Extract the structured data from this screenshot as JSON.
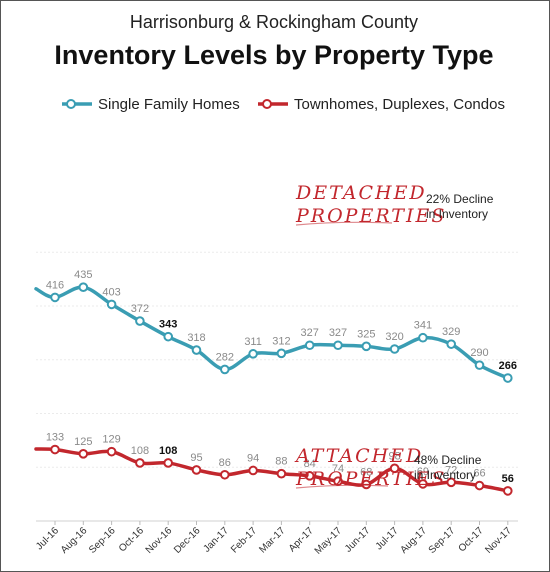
{
  "subtitle": "Harrisonburg & Rockingham County",
  "title": "Inventory Levels by Property Type",
  "chart_data": {
    "type": "line",
    "categories": [
      "Jul-16",
      "Aug-16",
      "Sep-16",
      "Oct-16",
      "Nov-16",
      "Dec-16",
      "Jan-17",
      "Feb-17",
      "Mar-17",
      "Apr-17",
      "May-17",
      "Jun-17",
      "Jul-17",
      "Aug-17",
      "Sep-17",
      "Oct-17",
      "Nov-17"
    ],
    "series": [
      {
        "name": "Single Family Homes",
        "color": "#3a9db3",
        "values": [
          416,
          435,
          403,
          372,
          343,
          318,
          282,
          311,
          312,
          327,
          327,
          325,
          320,
          341,
          329,
          290,
          266
        ],
        "leading_value": 432,
        "bold_labels": [
          4,
          16
        ]
      },
      {
        "name": "Townhomes, Duplexes, Condos",
        "color": "#c2272d",
        "values": [
          133,
          125,
          129,
          108,
          108,
          95,
          86,
          94,
          88,
          84,
          74,
          68,
          98,
          69,
          72,
          66,
          56
        ],
        "leading_value": 134,
        "bold_labels": [
          4,
          16
        ]
      }
    ],
    "ylim": [
      0,
      520
    ],
    "grid": true,
    "legend": "top"
  },
  "annotations": {
    "detached_line1": "DETACHED",
    "detached_line2": "PROPERTIES",
    "detached_note1": "22% Decline",
    "detached_note2": "in Inventory",
    "attached_line1": "ATTACHED",
    "attached_line2": "PROPERTIES",
    "attached_note1": "48% Decline",
    "attached_note2": "in Inventory"
  }
}
